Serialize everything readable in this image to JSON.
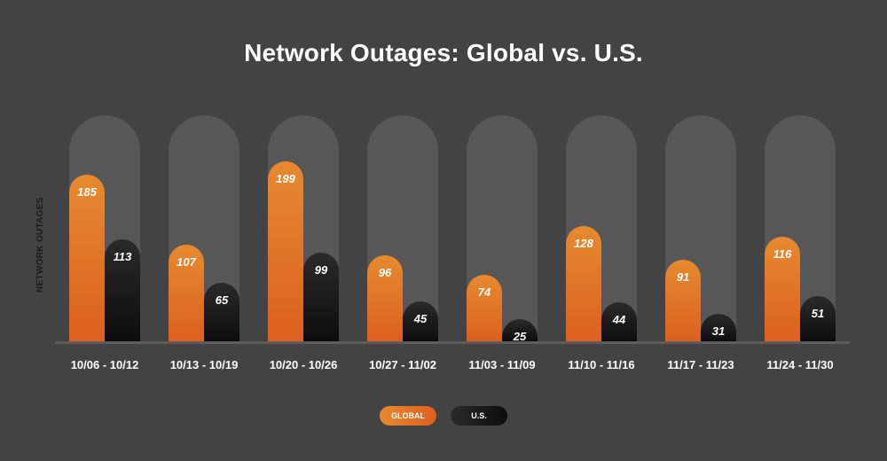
{
  "chart_data": {
    "type": "bar",
    "title": "Network Outages: Global vs. U.S.",
    "xlabel": "",
    "ylabel": "NETWORK OUTAGES",
    "categories": [
      "10/06 - 10/12",
      "10/13 - 10/19",
      "10/20 - 10/26",
      "10/27 - 11/02",
      "11/03 - 11/09",
      "11/10 - 11/16",
      "11/17 - 11/23",
      "11/24 - 11/30"
    ],
    "series": [
      {
        "name": "GLOBAL",
        "color": "#e0742a",
        "values": [
          185,
          107,
          199,
          96,
          74,
          128,
          91,
          116
        ]
      },
      {
        "name": "U.S.",
        "color": "#111111",
        "values": [
          113,
          65,
          99,
          45,
          25,
          44,
          31,
          51
        ]
      }
    ],
    "ylim": [
      0,
      250
    ],
    "grid": false,
    "legend_position": "bottom"
  },
  "legend": {
    "global": "GLOBAL",
    "us": "U.S."
  }
}
